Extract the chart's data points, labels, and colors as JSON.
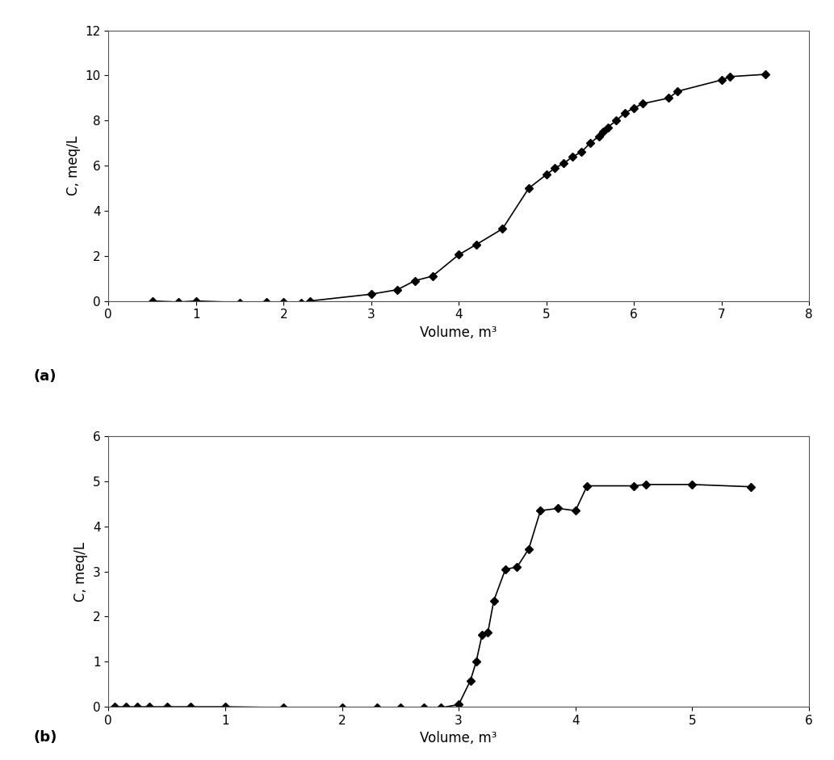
{
  "plot_a": {
    "x": [
      0.5,
      0.8,
      1.0,
      1.5,
      1.8,
      2.0,
      2.2,
      2.3,
      3.0,
      3.3,
      3.5,
      3.7,
      4.0,
      4.2,
      4.5,
      4.8,
      5.0,
      5.1,
      5.2,
      5.3,
      5.4,
      5.5,
      5.6,
      5.65,
      5.7,
      5.8,
      5.9,
      6.0,
      6.1,
      6.4,
      6.5,
      7.0,
      7.1,
      7.5
    ],
    "y": [
      0.0,
      -0.05,
      0.0,
      -0.07,
      -0.05,
      -0.05,
      -0.1,
      0.0,
      0.3,
      0.5,
      0.9,
      1.1,
      2.05,
      2.5,
      3.2,
      5.0,
      5.6,
      5.9,
      6.1,
      6.4,
      6.6,
      7.0,
      7.3,
      7.5,
      7.7,
      8.0,
      8.35,
      8.55,
      8.75,
      9.0,
      9.3,
      9.8,
      9.95,
      10.05
    ],
    "xlim": [
      0,
      8
    ],
    "ylim": [
      0,
      12
    ],
    "xticks": [
      0,
      1,
      2,
      3,
      4,
      5,
      6,
      7,
      8
    ],
    "yticks": [
      0,
      2,
      4,
      6,
      8,
      10,
      12
    ],
    "xlabel": "Volume, m³",
    "ylabel": "C, meq/L",
    "label": "(a)"
  },
  "plot_b": {
    "x": [
      0.05,
      0.15,
      0.25,
      0.35,
      0.5,
      0.7,
      1.0,
      1.5,
      2.0,
      2.3,
      2.5,
      2.7,
      2.85,
      3.0,
      3.1,
      3.15,
      3.2,
      3.25,
      3.3,
      3.4,
      3.5,
      3.6,
      3.7,
      3.85,
      4.0,
      4.1,
      4.5,
      4.6,
      5.0,
      5.5
    ],
    "y": [
      0.0,
      0.0,
      0.0,
      0.0,
      0.0,
      0.0,
      0.0,
      -0.02,
      -0.02,
      -0.02,
      -0.02,
      -0.02,
      -0.02,
      0.05,
      0.58,
      1.0,
      1.6,
      1.65,
      2.35,
      3.05,
      3.1,
      3.5,
      4.35,
      4.4,
      4.35,
      4.9,
      4.9,
      4.93,
      4.93,
      4.88
    ],
    "xlim": [
      0,
      6
    ],
    "ylim": [
      0,
      6
    ],
    "xticks": [
      0,
      1,
      2,
      3,
      4,
      5,
      6
    ],
    "yticks": [
      0,
      1,
      2,
      3,
      4,
      5,
      6
    ],
    "xlabel": "Volume, m³",
    "ylabel": "C, meq/L",
    "label": "(b)"
  },
  "line_color": "#000000",
  "marker": "D",
  "markersize": 5,
  "linewidth": 1.2,
  "background_color": "#ffffff",
  "label_fontsize": 13,
  "tick_fontsize": 11,
  "axis_label_fontsize": 12
}
